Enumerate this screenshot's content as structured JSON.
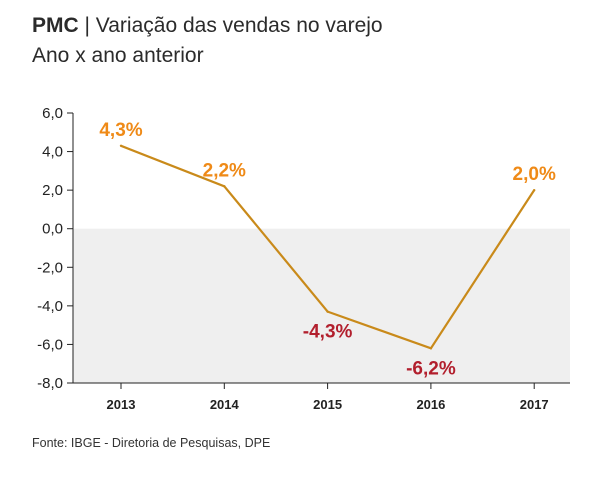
{
  "header": {
    "title_bold": "PMC",
    "title_sep": " | ",
    "title_rest": "Variação das vendas no varejo",
    "subtitle": "Ano x ano anterior"
  },
  "footer": {
    "source": "Fonte: IBGE - Diretoria de Pesquisas, DPE"
  },
  "colors": {
    "line": "#c98a1a",
    "positive_label": "#ef8a17",
    "negative_label": "#b21f2d",
    "negative_band": "#efefef"
  },
  "chart_data": {
    "type": "line",
    "title": "PMC | Variação das vendas no varejo",
    "subtitle": "Ano x ano anterior",
    "xlabel": "",
    "ylabel": "",
    "categories": [
      "2013",
      "2014",
      "2015",
      "2016",
      "2017"
    ],
    "series": [
      {
        "values": [
          4.3,
          2.2,
          -4.3,
          -6.2,
          2.0
        ],
        "labels": [
          "4,3%",
          "2,2%",
          "-4,3%",
          "-6,2%",
          "2,0%"
        ]
      }
    ],
    "ylim": [
      -8,
      6
    ],
    "yticks": [
      6,
      4,
      2,
      0,
      -2,
      -4,
      -6,
      -8
    ],
    "ytick_labels": [
      "6,0",
      "4,0",
      "2,0",
      "0,0",
      "-2,0",
      "-4,0",
      "-6,0",
      "-8,0"
    ],
    "grid": false,
    "negative_region_shaded": true
  }
}
